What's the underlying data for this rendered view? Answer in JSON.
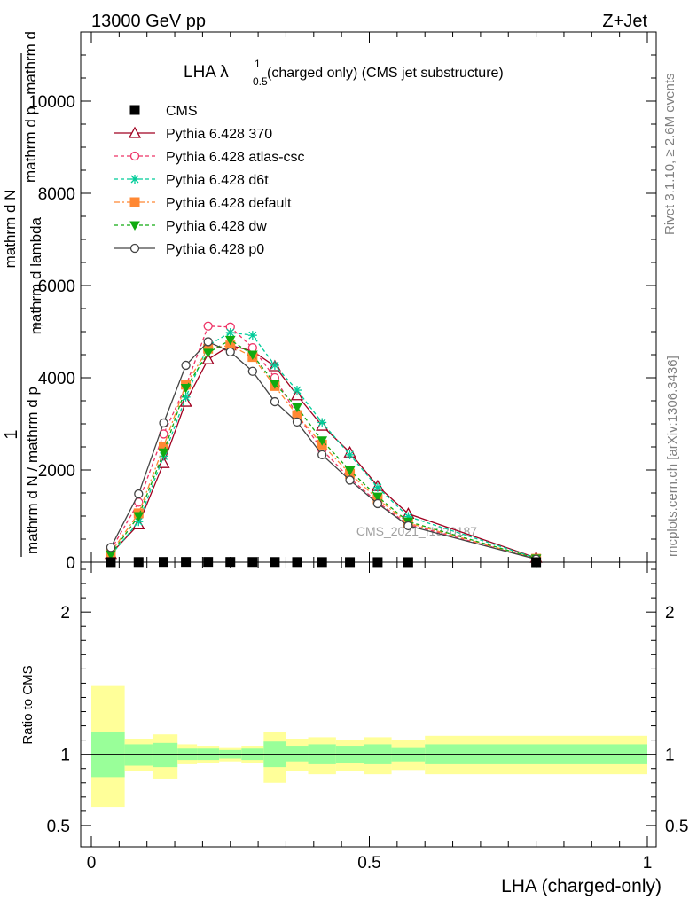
{
  "header": {
    "left": "13000 GeV pp",
    "right": "Z+Jet"
  },
  "side": {
    "rivet": "Rivet 3.1.10, ≥ 2.6M events",
    "mcplots": "mcplots.cern.ch [arXiv:1306.3436]"
  },
  "chart_data": [
    {
      "type": "line",
      "title": "LHA λ",
      "title_sup": "1",
      "title_sub": "0.5",
      "title_rest": " (charged only) (CMS jet substructure)",
      "watermark": "CMS_2021_I1920187",
      "ylabel_top": "1",
      "ylabel_num": "mathrm d N / mathrm d p",
      "ylabel_den": "mathrm d N",
      "ylabel_line1": "mathrm d",
      "ylabel_line2": "mathrm d p",
      "ylabel_line3": "mathrm d lambda",
      "ylabel_den_sub": "T",
      "xlim": [
        0,
        1
      ],
      "ylim": [
        0,
        11500
      ],
      "yticks": [
        0,
        2000,
        4000,
        6000,
        8000,
        10000
      ],
      "ytick_labels": [
        "0",
        "2000",
        "4000",
        "6000",
        "8000",
        "10000"
      ],
      "x": [
        0.035,
        0.085,
        0.13,
        0.17,
        0.21,
        0.25,
        0.29,
        0.33,
        0.37,
        0.415,
        0.465,
        0.515,
        0.57,
        0.8
      ],
      "series": [
        {
          "name": "CMS",
          "color": "#000000",
          "marker": "square-filled",
          "dash": "none",
          "values": [
            2.2,
            4.0,
            6.0,
            6.5,
            6.8,
            6.0,
            5.2,
            4.5,
            3.8,
            3.0,
            2.2,
            1.6,
            1.1,
            0.15
          ]
        },
        {
          "name": "Pythia 6.428 370",
          "color": "#a00020",
          "marker": "triangle-open",
          "dash": "none",
          "values": [
            180,
            820,
            2150,
            3480,
            4400,
            4700,
            4580,
            4250,
            3620,
            2960,
            2380,
            1650,
            1050,
            95
          ]
        },
        {
          "name": "Pythia 6.428 atlas-csc",
          "color": "#ee3366",
          "marker": "circle-open",
          "dash": "4,3",
          "values": [
            260,
            1300,
            2780,
            3820,
            5120,
            5100,
            4650,
            4000,
            3200,
            2440,
            1820,
            1300,
            820,
            70
          ]
        },
        {
          "name": "Pythia 6.428 d6t",
          "color": "#00cc99",
          "marker": "star",
          "dash": "4,3",
          "values": [
            150,
            880,
            2300,
            3580,
            4700,
            4980,
            4920,
            4270,
            3730,
            3030,
            2330,
            1620,
            990,
            90
          ]
        },
        {
          "name": "Pythia 6.428 default",
          "color": "#ff8833",
          "marker": "square-filled",
          "dash": "6,3,2,3",
          "values": [
            210,
            1060,
            2510,
            3850,
            4630,
            4700,
            4450,
            3820,
            3190,
            2550,
            1920,
            1370,
            850,
            75
          ]
        },
        {
          "name": "Pythia 6.428 dw",
          "color": "#11aa11",
          "marker": "triangle-down-filled",
          "dash": "4,3",
          "values": [
            170,
            1000,
            2380,
            3780,
            4540,
            4820,
            4500,
            3870,
            3360,
            2640,
            1990,
            1420,
            880,
            80
          ]
        },
        {
          "name": "Pythia 6.428 p0",
          "color": "#444444",
          "marker": "circle-open",
          "dash": "none",
          "values": [
            320,
            1480,
            3020,
            4270,
            4780,
            4560,
            4140,
            3480,
            3040,
            2330,
            1780,
            1270,
            790,
            65
          ]
        }
      ]
    },
    {
      "type": "area",
      "ylabel": "Ratio to CMS",
      "xlabel": "LHA (charged-only)",
      "xlim": [
        0,
        1
      ],
      "ylim": [
        0.35,
        2.35
      ],
      "xticks": [
        0,
        0.5,
        1
      ],
      "xtick_labels": [
        "0",
        "0.5",
        "1"
      ],
      "yticks": [
        0.5,
        1,
        2
      ],
      "ytick_labels": [
        "0.5",
        "1",
        "2"
      ],
      "bins": [
        0,
        0.06,
        0.11,
        0.155,
        0.19,
        0.23,
        0.27,
        0.31,
        0.35,
        0.39,
        0.44,
        0.49,
        0.54,
        0.6,
        1.0
      ],
      "band_inner_color": "#99ff99",
      "band_outer_color": "#ffff99",
      "band_inner_lo": [
        0.84,
        0.92,
        0.91,
        0.96,
        0.96,
        0.97,
        0.96,
        0.91,
        0.95,
        0.93,
        0.94,
        0.93,
        0.95,
        0.93
      ],
      "band_inner_hi": [
        1.16,
        1.07,
        1.08,
        1.04,
        1.04,
        1.03,
        1.04,
        1.09,
        1.06,
        1.07,
        1.06,
        1.07,
        1.05,
        1.07
      ],
      "band_outer_lo": [
        0.63,
        0.88,
        0.83,
        0.93,
        0.94,
        0.95,
        0.94,
        0.8,
        0.88,
        0.86,
        0.88,
        0.86,
        0.89,
        0.86
      ],
      "band_outer_hi": [
        1.48,
        1.11,
        1.14,
        1.07,
        1.06,
        1.05,
        1.06,
        1.16,
        1.11,
        1.12,
        1.1,
        1.12,
        1.1,
        1.13
      ],
      "reference": 1
    }
  ]
}
